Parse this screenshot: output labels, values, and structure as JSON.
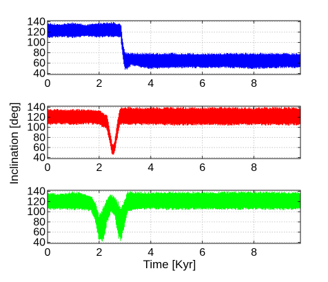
{
  "chart_data": {
    "type": "line",
    "shared_xlabel": "Time [Kyr]",
    "shared_ylabel": "Inclination [deg]",
    "grid": true,
    "panels": [
      {
        "name": "",
        "color": "#0000ff",
        "xlim": [
          0,
          9.8
        ],
        "ylim": [
          38,
          142
        ],
        "xticks": [
          0,
          2,
          4,
          6,
          8
        ],
        "yticks": [
          40,
          60,
          80,
          100,
          120,
          140
        ],
        "bands": [
          {
            "x": [
              0,
              0.5,
              1.0,
              1.5,
              2.0,
              2.5,
              2.8,
              2.85
            ],
            "lower": [
              108,
              110,
              108,
              111,
              109,
              110,
              108,
              108
            ],
            "upper": [
              138,
              136,
              139,
              135,
              138,
              140,
              137,
              134
            ]
          },
          {
            "x": [
              2.85,
              2.9,
              2.95,
              3.0,
              3.1,
              3.2
            ],
            "lower": [
              100,
              80,
              60,
              45,
              48,
              52
            ],
            "upper": [
              134,
              110,
              92,
              82,
              80,
              80
            ]
          },
          {
            "x": [
              3.2,
              4.0,
              5.0,
              6.0,
              7.0,
              8.0,
              9.0,
              9.8
            ],
            "lower": [
              55,
              48,
              50,
              50,
              50,
              48,
              50,
              50
            ],
            "upper": [
              80,
              80,
              80,
              79,
              80,
              80,
              80,
              79
            ]
          }
        ]
      },
      {
        "name": "",
        "color": "#ff0000",
        "xlim": [
          0,
          9.8
        ],
        "ylim": [
          38,
          142
        ],
        "xticks": [
          0,
          2,
          4,
          6,
          8
        ],
        "yticks": [
          40,
          60,
          80,
          100,
          120,
          140
        ],
        "bands": [
          {
            "x": [
              0,
              0.5,
              1.0,
              1.5,
              2.0,
              2.3,
              2.4,
              2.5,
              2.55,
              2.6,
              2.7,
              2.8,
              3.0,
              4.0,
              5.0,
              6.0,
              7.0,
              8.0,
              9.0,
              9.8
            ],
            "lower": [
              104,
              106,
              104,
              106,
              104,
              95,
              70,
              45,
              44,
              50,
              75,
              105,
              104,
              104,
              103,
              104,
              103,
              104,
              103,
              104
            ],
            "upper": [
              138,
              136,
              137,
              136,
              135,
              125,
              100,
              70,
              66,
              75,
              110,
              140,
              141,
              140,
              141,
              140,
              141,
              140,
              141,
              140
            ]
          }
        ]
      },
      {
        "name": "",
        "color": "#00ff00",
        "xlim": [
          0,
          9.8
        ],
        "ylim": [
          38,
          142
        ],
        "xticks": [
          0,
          2,
          4,
          6,
          8
        ],
        "yticks": [
          40,
          60,
          80,
          100,
          120,
          140
        ],
        "bands": [
          {
            "x": [
              0,
              0.5,
              1.0,
              1.4,
              1.7,
              1.85,
              2.0,
              2.15,
              2.3,
              2.45,
              2.6,
              2.75,
              2.85,
              2.95,
              3.1,
              3.5,
              4.0,
              5.0,
              6.0,
              7.0,
              8.0,
              9.0,
              9.8
            ],
            "lower": [
              103,
              104,
              103,
              103,
              100,
              80,
              40,
              40,
              75,
              98,
              90,
              45,
              42,
              60,
              98,
              103,
              104,
              103,
              104,
              103,
              104,
              103,
              104
            ],
            "upper": [
              138,
              136,
              140,
              137,
              132,
              120,
              95,
              110,
              128,
              135,
              130,
              120,
              110,
              118,
              140,
              140,
              139,
              140,
              139,
              140,
              140,
              139,
              140
            ]
          }
        ]
      }
    ]
  }
}
